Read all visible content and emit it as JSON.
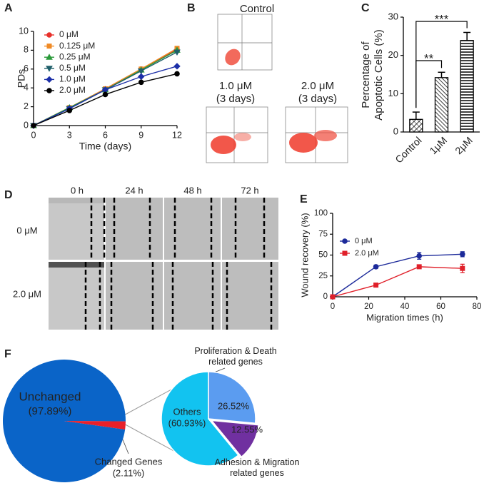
{
  "figure": {
    "panel_labels": [
      "A",
      "B",
      "C",
      "D",
      "E",
      "F"
    ],
    "flow_cytometry": {
      "control": "Control",
      "treatments": [
        {
          "dose": "1.0 μM",
          "duration": "(3 days)"
        },
        {
          "dose": "2.0 μM",
          "duration": "(3 days)"
        }
      ]
    },
    "wound_healing": {
      "times": [
        "0 h",
        "24 h",
        "48 h",
        "72 h"
      ],
      "doses": [
        "0 μM",
        "2.0 μM"
      ]
    }
  },
  "chart_data": [
    {
      "type": "line",
      "xlabel": "Time (days)",
      "ylabel": "PDs",
      "x": [
        0,
        3,
        6,
        9,
        12
      ],
      "xlim": [
        0,
        12
      ],
      "xticks": [
        0,
        3,
        6,
        9,
        12
      ],
      "ylim": [
        0,
        10
      ],
      "yticks": [
        0,
        2,
        4,
        6,
        8,
        10
      ],
      "legend": "upper left",
      "series": [
        {
          "name": "0 μM",
          "color": "#e8302a",
          "marker": "circle",
          "values": [
            0,
            1.9,
            3.9,
            6.0,
            8.1
          ]
        },
        {
          "name": "0.125 μM",
          "color": "#f08a24",
          "marker": "square",
          "values": [
            0,
            1.9,
            3.9,
            6.0,
            8.2
          ]
        },
        {
          "name": "0.25 μM",
          "color": "#2a9a3a",
          "marker": "triangle-up",
          "values": [
            0,
            1.9,
            3.8,
            5.9,
            8.0
          ]
        },
        {
          "name": "0.5 μM",
          "color": "#1f5f6a",
          "marker": "triangle-down",
          "values": [
            0,
            1.8,
            3.8,
            5.8,
            7.8
          ]
        },
        {
          "name": "1.0 μM",
          "color": "#1c2fa8",
          "marker": "diamond",
          "values": [
            0,
            1.8,
            3.8,
            5.2,
            6.3
          ]
        },
        {
          "name": "2.0 μM",
          "color": "#000000",
          "marker": "circle",
          "values": [
            0,
            1.6,
            3.3,
            4.6,
            5.5
          ]
        }
      ]
    },
    {
      "type": "bar",
      "ylabel": "Percentage of Apoptotic Cells (%)",
      "categories": [
        "Control",
        "1μM",
        "2μM"
      ],
      "values": [
        3.3,
        14.2,
        23.9
      ],
      "errors": [
        1.9,
        1.4,
        2.1
      ],
      "ylim": [
        0,
        30
      ],
      "yticks": [
        0,
        10,
        20,
        30
      ],
      "color": "#000000",
      "annotations": [
        "**",
        "***"
      ]
    },
    {
      "type": "line",
      "xlabel": "Migration times (h)",
      "ylabel": "Wound recovery (%)",
      "x": [
        0,
        24,
        48,
        72
      ],
      "xlim": [
        0,
        80
      ],
      "xticks": [
        0,
        20,
        40,
        60,
        80
      ],
      "ylim": [
        0,
        100
      ],
      "yticks": [
        0,
        25,
        50,
        75,
        100
      ],
      "legend": "upper left",
      "series": [
        {
          "name": "0 μM",
          "color": "#1c2a9a",
          "marker": "circle",
          "values": [
            0,
            36,
            49,
            51
          ],
          "errors": [
            0,
            2,
            4,
            3
          ]
        },
        {
          "name": "2.0 μM",
          "color": "#e0202a",
          "marker": "square",
          "values": [
            0,
            14,
            36,
            34
          ],
          "errors": [
            0,
            2,
            2,
            5
          ]
        }
      ]
    },
    {
      "type": "pie",
      "categories": [
        "Unchanged",
        "Changed Genes"
      ],
      "values": [
        97.89,
        2.11
      ],
      "value_labels": [
        "(97.89%)",
        "(2.11%)"
      ],
      "colors": [
        "#0a64c8",
        "#e8202a"
      ]
    },
    {
      "type": "pie",
      "categories": [
        "Others",
        "Proliferation & Death related genes",
        "Adhesion & Migration related genes"
      ],
      "values": [
        60.93,
        26.52,
        12.55
      ],
      "value_labels": [
        "(60.93%)",
        "26.52%",
        "12.55%"
      ],
      "colors": [
        "#12c3f0",
        "#5b9cf0",
        "#7030a0"
      ]
    }
  ]
}
